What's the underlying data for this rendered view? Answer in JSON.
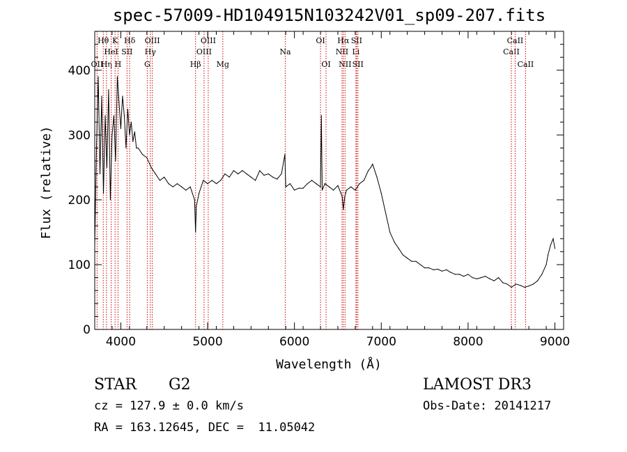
{
  "title": "spec-57009-HD104915N103242V01_sp09-207.fits",
  "info": {
    "class_label": "STAR",
    "subclass": "G2",
    "survey": "LAMOST DR3",
    "cz": "cz = 127.9 ± 0.0 km/s",
    "obs_date": "Obs-Date: 20141217",
    "coords": "RA = 163.12645, DEC =  11.05042"
  },
  "chart_data": {
    "type": "line",
    "title": "spec-57009-HD104915N103242V01_sp09-207.fits",
    "xlabel": "Wavelength (Å)",
    "ylabel": "Flux (relative)",
    "xlim": [
      3700,
      9100
    ],
    "ylim": [
      0,
      460
    ],
    "xticks": [
      4000,
      5000,
      6000,
      7000,
      8000,
      9000
    ],
    "yticks": [
      0,
      100,
      200,
      300,
      400
    ],
    "grid": false,
    "line_color": "#000000",
    "marker_color": "#cc0000",
    "series": [
      {
        "x": [
          3700,
          3720,
          3740,
          3760,
          3780,
          3800,
          3820,
          3840,
          3860,
          3880,
          3900,
          3920,
          3940,
          3960,
          3980,
          4000,
          4020,
          4040,
          4060,
          4080,
          4100,
          4120,
          4140,
          4160,
          4180,
          4200,
          4250,
          4300,
          4350,
          4400,
          4450,
          4500,
          4550,
          4600,
          4650,
          4700,
          4750,
          4800,
          4850,
          4861,
          4870,
          4900,
          4950,
          5000,
          5050,
          5100,
          5150,
          5200,
          5250,
          5300,
          5350,
          5400,
          5450,
          5500,
          5550,
          5600,
          5650,
          5700,
          5750,
          5800,
          5850,
          5890,
          5900,
          5950,
          6000,
          6050,
          6100,
          6150,
          6200,
          6250,
          6300,
          6310,
          6320,
          6350,
          6400,
          6450,
          6500,
          6550,
          6563,
          6580,
          6600,
          6650,
          6700,
          6750,
          6800,
          6850,
          6880,
          6900,
          6950,
          7000,
          7050,
          7100,
          7150,
          7200,
          7250,
          7300,
          7350,
          7400,
          7450,
          7500,
          7550,
          7600,
          7650,
          7700,
          7750,
          7800,
          7850,
          7900,
          7950,
          8000,
          8050,
          8100,
          8150,
          8200,
          8250,
          8300,
          8350,
          8400,
          8450,
          8500,
          8550,
          8600,
          8650,
          8700,
          8750,
          8800,
          8850,
          8900,
          8920,
          8950,
          8980,
          9000
        ],
        "y": [
          130,
          280,
          390,
          240,
          360,
          210,
          330,
          250,
          370,
          200,
          300,
          330,
          260,
          390,
          350,
          310,
          360,
          330,
          280,
          340,
          300,
          320,
          290,
          305,
          280,
          280,
          270,
          265,
          250,
          240,
          230,
          235,
          225,
          220,
          225,
          220,
          215,
          220,
          200,
          150,
          190,
          210,
          230,
          225,
          230,
          225,
          230,
          240,
          235,
          245,
          240,
          245,
          240,
          235,
          230,
          245,
          238,
          240,
          235,
          232,
          240,
          270,
          220,
          225,
          215,
          218,
          218,
          225,
          230,
          225,
          220,
          330,
          215,
          225,
          220,
          215,
          222,
          205,
          185,
          205,
          215,
          220,
          215,
          225,
          230,
          245,
          250,
          255,
          235,
          210,
          180,
          150,
          135,
          125,
          115,
          110,
          105,
          105,
          100,
          95,
          95,
          92,
          93,
          90,
          92,
          88,
          85,
          85,
          82,
          85,
          80,
          78,
          80,
          82,
          78,
          75,
          80,
          72,
          70,
          65,
          70,
          68,
          65,
          67,
          70,
          75,
          85,
          100,
          115,
          130,
          140,
          125
        ]
      }
    ],
    "lines": [
      {
        "label": "OII",
        "wl": 3727,
        "row": 3
      },
      {
        "label": "Hθ",
        "wl": 3798,
        "row": 1
      },
      {
        "label": "Hη",
        "wl": 3835,
        "row": 3
      },
      {
        "label": "HeI",
        "wl": 3889,
        "row": 2
      },
      {
        "label": "K",
        "wl": 3934,
        "row": 1
      },
      {
        "label": "H",
        "wl": 3968,
        "row": 3
      },
      {
        "label": "SII",
        "wl": 4072,
        "row": 2
      },
      {
        "label": "Hδ",
        "wl": 4102,
        "row": 1
      },
      {
        "label": "Hγ",
        "wl": 4340,
        "row": 2
      },
      {
        "label": "G",
        "wl": 4305,
        "row": 3
      },
      {
        "label": "OIII",
        "wl": 4363,
        "row": 1
      },
      {
        "label": "Hβ",
        "wl": 4861,
        "row": 3
      },
      {
        "label": "OIII",
        "wl": 4959,
        "row": 2
      },
      {
        "label": "OIII",
        "wl": 5007,
        "row": 1
      },
      {
        "label": "Mg",
        "wl": 5175,
        "row": 3
      },
      {
        "label": "Na",
        "wl": 5894,
        "row": 2
      },
      {
        "label": "OI",
        "wl": 6300,
        "row": 1
      },
      {
        "label": "OI",
        "wl": 6364,
        "row": 3
      },
      {
        "label": "NII",
        "wl": 6548,
        "row": 2
      },
      {
        "label": "Hα",
        "wl": 6563,
        "row": 1
      },
      {
        "label": "NII",
        "wl": 6583,
        "row": 3
      },
      {
        "label": "Li",
        "wl": 6708,
        "row": 2
      },
      {
        "label": "SII",
        "wl": 6716,
        "row": 1
      },
      {
        "label": "SII",
        "wl": 6731,
        "row": 3
      },
      {
        "label": "CaII",
        "wl": 8498,
        "row": 2
      },
      {
        "label": "CaII",
        "wl": 8542,
        "row": 1
      },
      {
        "label": "CaII",
        "wl": 8662,
        "row": 3
      }
    ]
  }
}
